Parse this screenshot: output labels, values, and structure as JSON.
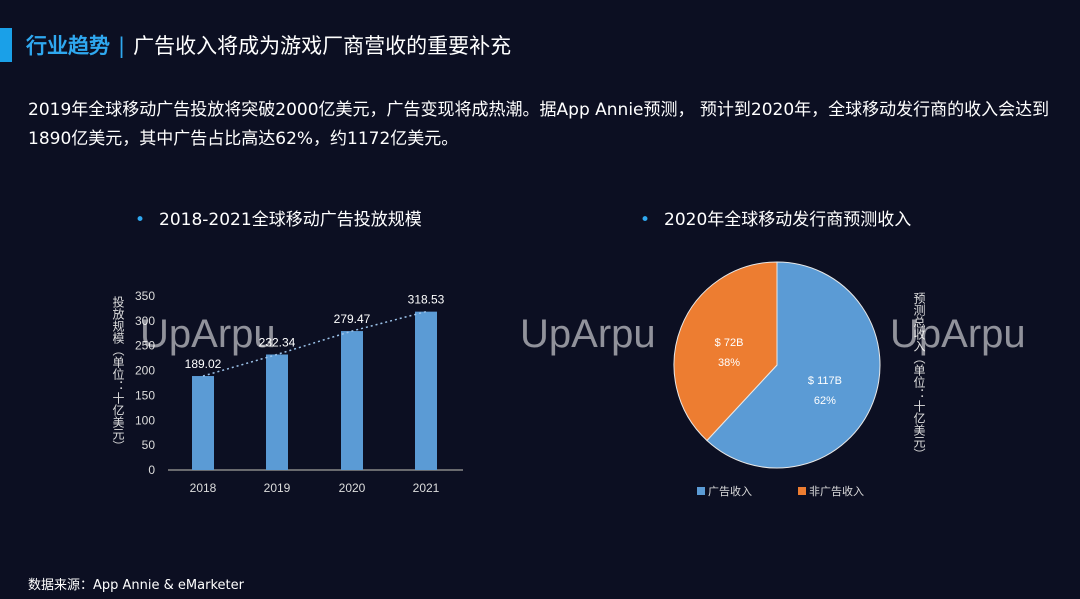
{
  "header": {
    "title_prefix": "行业趋势",
    "separator": "|",
    "title": "广告收入将成为游戏厂商营收的重要补充"
  },
  "intro": "2019年全球移动广告投放将突破2000亿美元，广告变现将成热潮。据App Annie预测， 预计到2020年，全球移动发行商的收入会达到1890亿美元，其中广告占比高达62%，约1172亿美元。",
  "watermark": "UpArpu",
  "source": "数据来源：App Annie & eMarketer",
  "colors": {
    "bar": "#5b9bd5",
    "ad": "#5b9bd5",
    "nonad": "#ed7d31",
    "accent": "#1aa0e8"
  },
  "chart_data": [
    {
      "type": "bar",
      "title": "2018-2021全球移动广告投放规模",
      "categories": [
        "2018",
        "2019",
        "2020",
        "2021"
      ],
      "values": [
        189.02,
        232.34,
        279.47,
        318.53
      ],
      "labels": [
        "189.02",
        "232.34",
        "279.47",
        "318.53"
      ],
      "ylabel": "投放规模（单位：十亿美元）",
      "ylim": [
        0,
        350
      ],
      "yticks": [
        "0",
        "50",
        "100",
        "150",
        "200",
        "250",
        "300",
        "350"
      ],
      "trendline": "dotted linear"
    },
    {
      "type": "pie",
      "title": "2020年全球移动发行商预测收入",
      "slices": [
        {
          "name": "广告收入",
          "value": 117,
          "label": "$ 117B",
          "pct": "62%"
        },
        {
          "name": "非广告收入",
          "value": 72,
          "label": "$ 72B",
          "pct": "38%"
        }
      ],
      "ylabel": "预测总收入（单位：十亿美元）",
      "legend": "bottom"
    }
  ]
}
